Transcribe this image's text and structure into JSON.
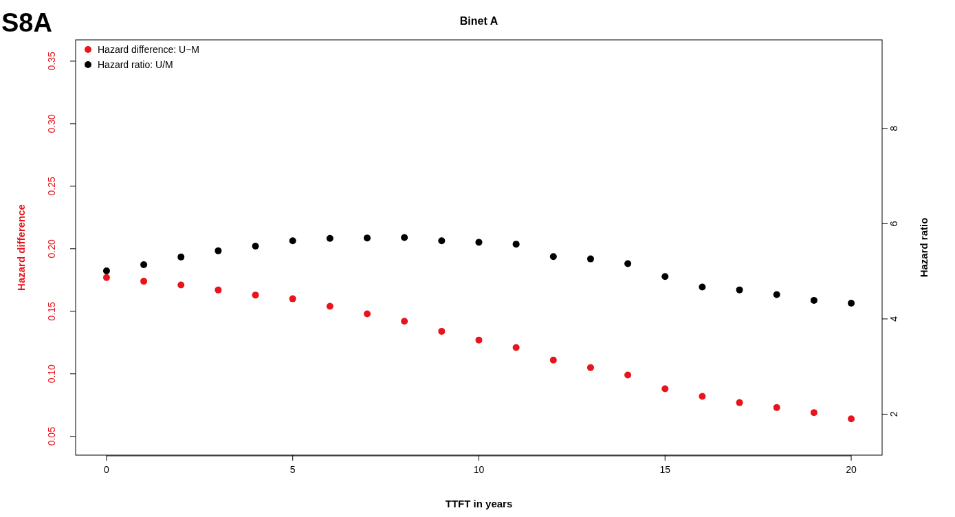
{
  "chart_data": {
    "type": "scatter",
    "title": "Binet A",
    "annotations": [
      "S8A"
    ],
    "xlabel": "TTFT in years",
    "ylabel": "Hazard difference",
    "y2label": "Hazard ratio",
    "x": [
      0,
      1,
      2,
      3,
      4,
      5,
      6,
      7,
      8,
      9,
      10,
      11,
      12,
      13,
      14,
      15,
      16,
      17,
      18,
      19,
      20
    ],
    "series": [
      {
        "name": "Hazard difference: U−M",
        "color": "#e8141c",
        "values": [
          0.177,
          0.174,
          0.171,
          0.167,
          0.163,
          0.16,
          0.154,
          0.148,
          0.142,
          0.134,
          0.127,
          0.121,
          0.111,
          0.105,
          0.099,
          0.088,
          0.082,
          0.077,
          0.073,
          0.069,
          0.064
        ]
      },
      {
        "name": "Hazard ratio: U/M",
        "color": "#000000",
        "axis": "y2",
        "values": [
          5.01,
          5.14,
          5.3,
          5.43,
          5.53,
          5.64,
          5.69,
          5.7,
          5.71,
          5.64,
          5.61,
          5.57,
          5.31,
          5.26,
          5.16,
          4.89,
          4.67,
          4.61,
          4.51,
          4.39,
          4.33
        ]
      }
    ],
    "xlim": [
      -0.83,
      20.83
    ],
    "xticks": [
      0,
      5,
      10,
      15,
      20
    ],
    "ylim": [
      0.035,
      0.367
    ],
    "yticks": [
      {
        "value": 0.05,
        "label": "0.05"
      },
      {
        "value": 0.1,
        "label": "0.10"
      },
      {
        "value": 0.15,
        "label": "0.15"
      },
      {
        "value": 0.2,
        "label": "0.20"
      },
      {
        "value": 0.25,
        "label": "0.25"
      },
      {
        "value": 0.3,
        "label": "0.30"
      },
      {
        "value": 0.35,
        "label": "0.35"
      }
    ],
    "y2lim": [
      1.14,
      9.86
    ],
    "y2ticks": [
      2,
      4,
      6,
      8
    ],
    "marker": "circle",
    "legend": "top left",
    "grid": false
  }
}
